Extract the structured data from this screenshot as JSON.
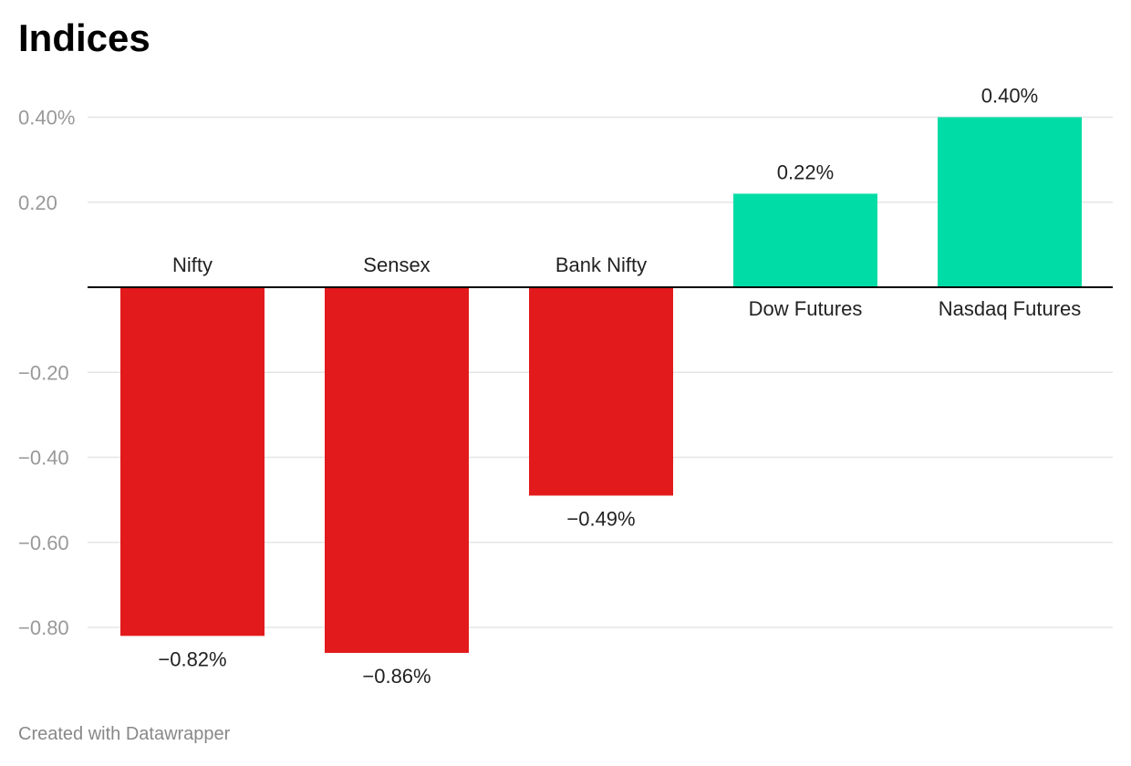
{
  "title": "Indices",
  "credit": "Created with Datawrapper",
  "chart_data": {
    "type": "bar",
    "title": "Indices",
    "xlabel": "",
    "ylabel": "",
    "categories": [
      "Nifty",
      "Sensex",
      "Bank Nifty",
      "Dow Futures",
      "Nasdaq Futures"
    ],
    "values": [
      -0.82,
      -0.86,
      -0.49,
      0.22,
      0.4
    ],
    "value_labels": [
      "−0.82%",
      "−0.86%",
      "−0.49%",
      "0.22%",
      "0.40%"
    ],
    "ylim": [
      -0.9,
      0.4
    ],
    "yticks": [
      0.4,
      0.2,
      -0.2,
      -0.4,
      -0.6,
      -0.8
    ],
    "ytick_labels": [
      "0.40%",
      "0.20",
      "−0.20",
      "−0.40",
      "−0.60",
      "−0.80"
    ],
    "grid": true,
    "legend": "none",
    "colors": {
      "negative": "#e31a1c",
      "positive": "#00dca5",
      "gridline": "#e5e5e5",
      "zero_line": "#000000"
    }
  }
}
